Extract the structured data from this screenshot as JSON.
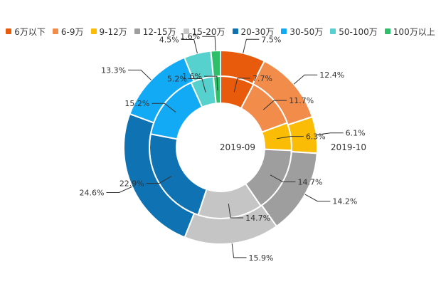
{
  "chart_data": {
    "type": "pie",
    "subtype": "nested-donut",
    "legend_position": "top",
    "categories": [
      "6万以下",
      "6-9万",
      "9-12万",
      "12-15万",
      "15-20万",
      "20-30万",
      "30-50万",
      "50-100万",
      "100万以上"
    ],
    "colors": [
      "#e85a0c",
      "#f28c4b",
      "#fbbc05",
      "#9e9e9e",
      "#c5c5c5",
      "#0e72b3",
      "#13aaf5",
      "#56d1cd",
      "#2ebf6b"
    ],
    "series": [
      {
        "name": "2019-09",
        "ring": "inner",
        "values": [
          7.7,
          11.7,
          6.3,
          14.7,
          14.7,
          22.9,
          15.2,
          5.2,
          1.6
        ],
        "labels": [
          "7.7%",
          "11.7%",
          "6.3%",
          "14.7%",
          "14.7%",
          "22.9%",
          "15.2%",
          "5.2%",
          "1.6%"
        ]
      },
      {
        "name": "2019-10",
        "ring": "outer",
        "values": [
          7.5,
          12.4,
          6.1,
          14.2,
          15.9,
          24.6,
          13.3,
          4.5,
          1.6
        ],
        "labels": [
          "7.5%",
          "12.4%",
          "6.1%",
          "14.2%",
          "15.9%",
          "24.6%",
          "13.3%",
          "4.5%",
          "1.6%"
        ]
      }
    ]
  }
}
